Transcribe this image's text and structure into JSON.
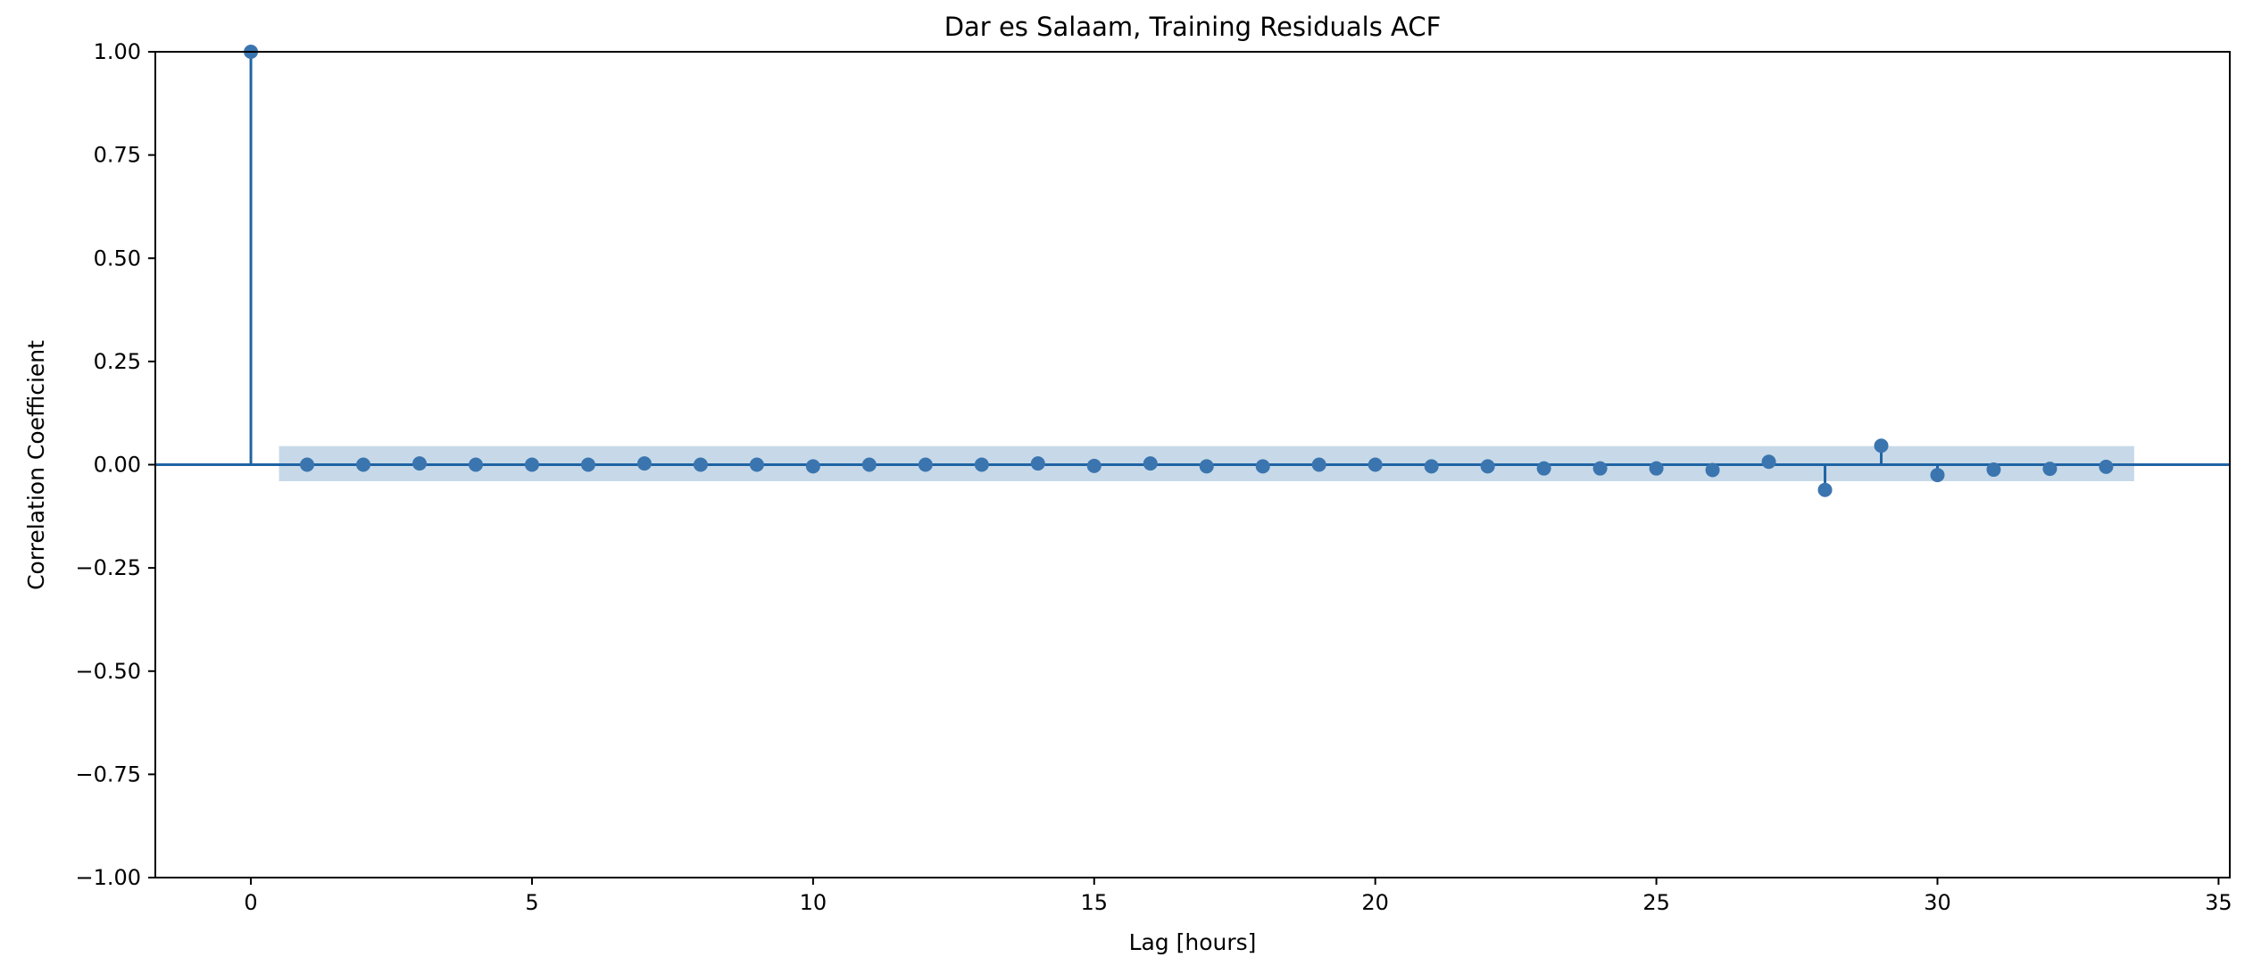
{
  "chart_data": {
    "type": "scatter",
    "subtype": "stem (autocorrelation function)",
    "title": "Dar es Salaam, Training Residuals ACF",
    "xlabel": "Lag [hours]",
    "ylabel": "Correlation Coefficient",
    "xlim": [
      -1.7,
      35.2
    ],
    "ylim": [
      -1.0,
      1.0
    ],
    "xticks": [
      0,
      5,
      10,
      15,
      20,
      25,
      30,
      35
    ],
    "xtick_labels": [
      "0",
      "5",
      "10",
      "15",
      "20",
      "25",
      "30",
      "35"
    ],
    "yticks": [
      -1.0,
      -0.75,
      -0.5,
      -0.25,
      0.0,
      0.25,
      0.5,
      0.75,
      1.0
    ],
    "ytick_labels": [
      "−1.00",
      "−0.75",
      "−0.50",
      "−0.25",
      "0.00",
      "0.25",
      "0.50",
      "0.75",
      "1.00"
    ],
    "grid": false,
    "legend": "none",
    "baseline": 0.0,
    "series": [
      {
        "x": [
          0,
          1,
          2,
          3,
          4,
          5,
          6,
          7,
          8,
          9,
          10,
          11,
          12,
          13,
          14,
          15,
          16,
          17,
          18,
          19,
          20,
          21,
          22,
          23,
          24,
          25,
          26,
          27,
          28,
          29,
          30,
          31,
          32,
          33
        ],
        "values": [
          1.0,
          0.0,
          0.0,
          0.003,
          0.0,
          0.0,
          0.0,
          0.003,
          0.0,
          0.0,
          -0.004,
          0.0,
          0.0,
          0.0,
          0.003,
          -0.003,
          0.003,
          -0.004,
          -0.004,
          0.0,
          0.0,
          -0.004,
          -0.004,
          -0.009,
          -0.009,
          -0.009,
          -0.013,
          0.007,
          -0.061,
          0.046,
          -0.025,
          -0.012,
          -0.01,
          -0.005
        ]
      }
    ],
    "confidence_band": {
      "x_range": [
        0.5,
        33.5
      ],
      "upper": 0.045,
      "lower": -0.04
    },
    "colors": {
      "stem": "#1f64a4",
      "marker": "#3b75af",
      "band": "#c7d9e8",
      "axes": "#000000"
    }
  }
}
